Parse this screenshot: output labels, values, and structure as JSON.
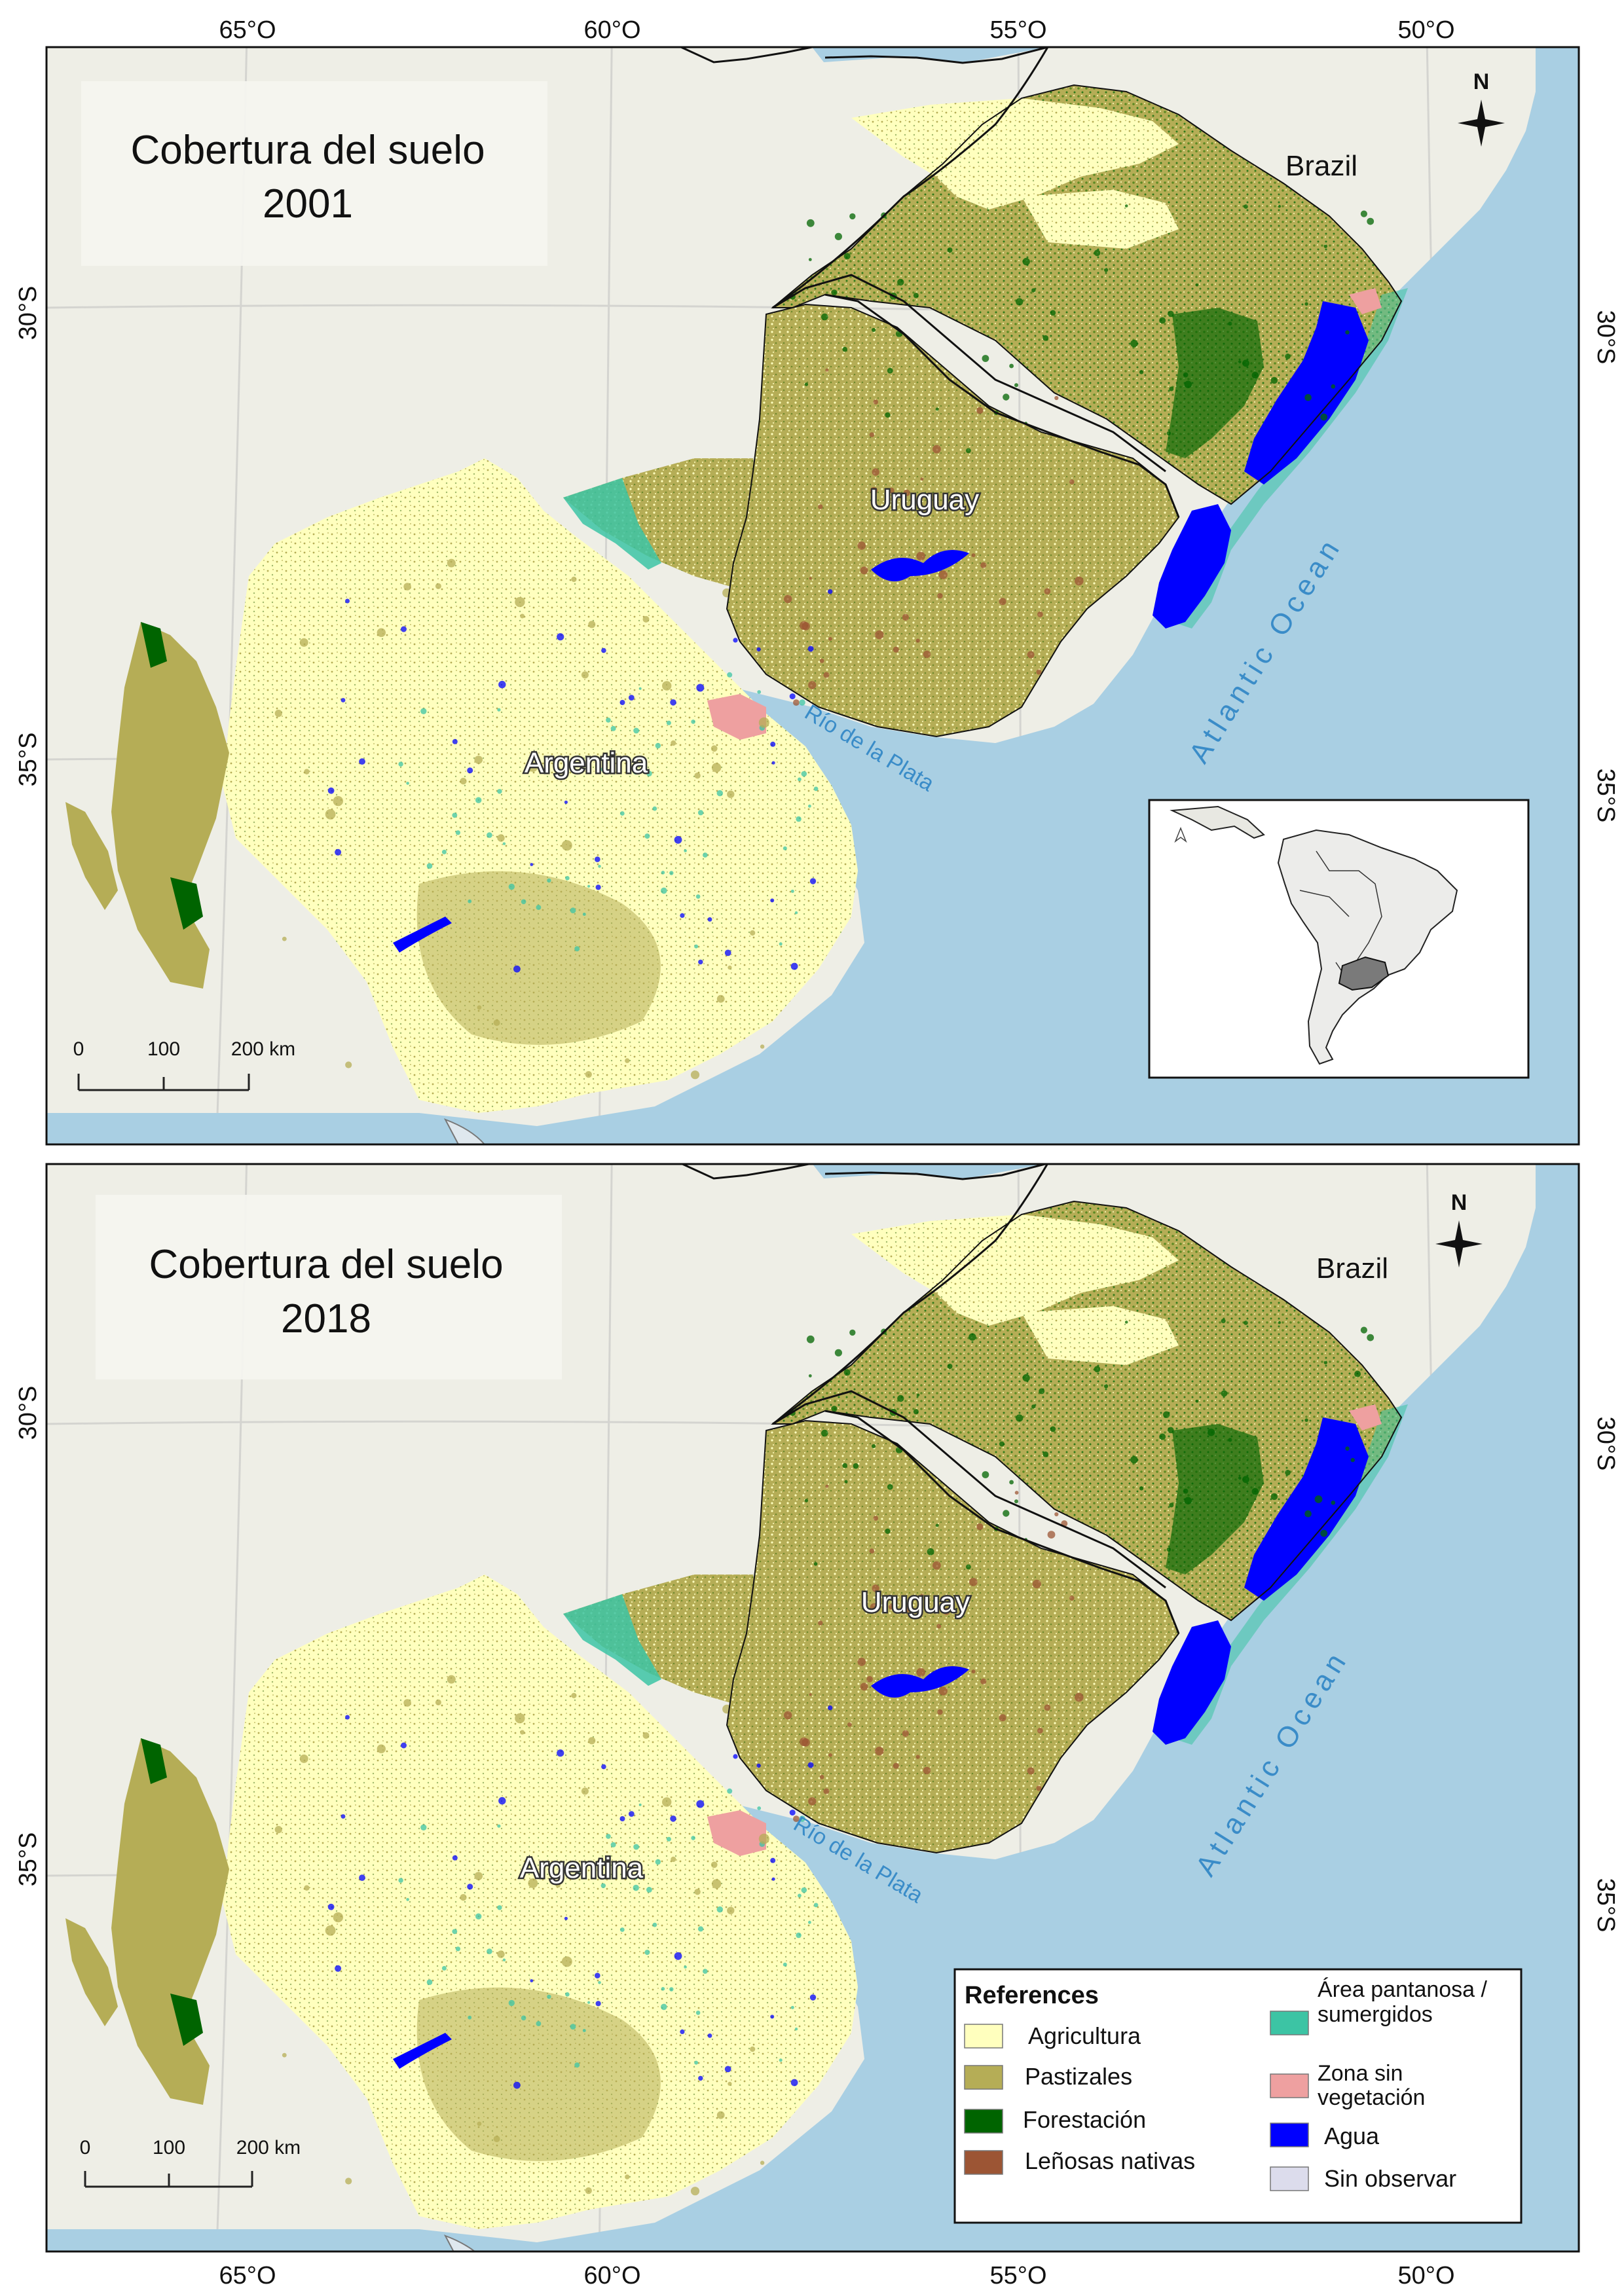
{
  "top_map": {
    "title_line1": "Cobertura del suelo",
    "title_line2": "2001",
    "lon_labels": [
      "65°O",
      "60°O",
      "55°O",
      "50°O"
    ],
    "lat_labels": [
      "30°S",
      "35°S"
    ],
    "countries": {
      "brazil": "Brazil",
      "uruguay": "Uruguay",
      "argentina": "Argentina"
    },
    "water_labels": {
      "rio": "Río de la Plata",
      "ocean": "Atlantic Ocean"
    },
    "north": "N",
    "scale": {
      "ticks": [
        "0",
        "100",
        "200 km"
      ]
    }
  },
  "bottom_map": {
    "title_line1": "Cobertura del suelo",
    "title_line2": "2018",
    "lon_labels": [
      "65°O",
      "60°O",
      "55°O",
      "50°O"
    ],
    "lat_labels": [
      "30°S",
      "35°S"
    ],
    "countries": {
      "brazil": "Brazil",
      "uruguay": "Uruguay",
      "argentina": "Argentina"
    },
    "water_labels": {
      "rio": "Río de la Plata",
      "ocean": "Atlantic Ocean"
    },
    "north": "N",
    "scale": {
      "ticks": [
        "0",
        "100",
        "200 km"
      ]
    }
  },
  "legend": {
    "title": "References",
    "items": [
      {
        "label": "Agricultura",
        "color": "#ffffbe"
      },
      {
        "label": "Pastizales",
        "color": "#b5ad56"
      },
      {
        "label": "Forestación",
        "color": "#006400"
      },
      {
        "label": "Leñosas nativas",
        "color": "#9c5534"
      },
      {
        "label": "Área pantanosa / sumergidos",
        "label_line1": "Área pantanosa /",
        "label_line2": "sumergidos",
        "color": "#3cc4a4"
      },
      {
        "label": "Zona sin vegetación",
        "label_line1": "Zona sin",
        "label_line2": "vegetación",
        "color": "#eea0a0"
      },
      {
        "label": "Agua",
        "color": "#0000ff"
      },
      {
        "label": "Sin observar",
        "color": "#dcdcec"
      }
    ]
  },
  "colors": {
    "ocean": "#a9cfe3",
    "land_background": "#eeeee6",
    "agriculture": "#ffffbe",
    "grassland": "#b5ad56",
    "forest": "#006400",
    "native_woody": "#9c5534",
    "wetland": "#3cc4a4",
    "bare": "#eea0a0",
    "water": "#0000ff",
    "unobserved": "#dcdcec",
    "label_blue": "#3a8cc8"
  }
}
